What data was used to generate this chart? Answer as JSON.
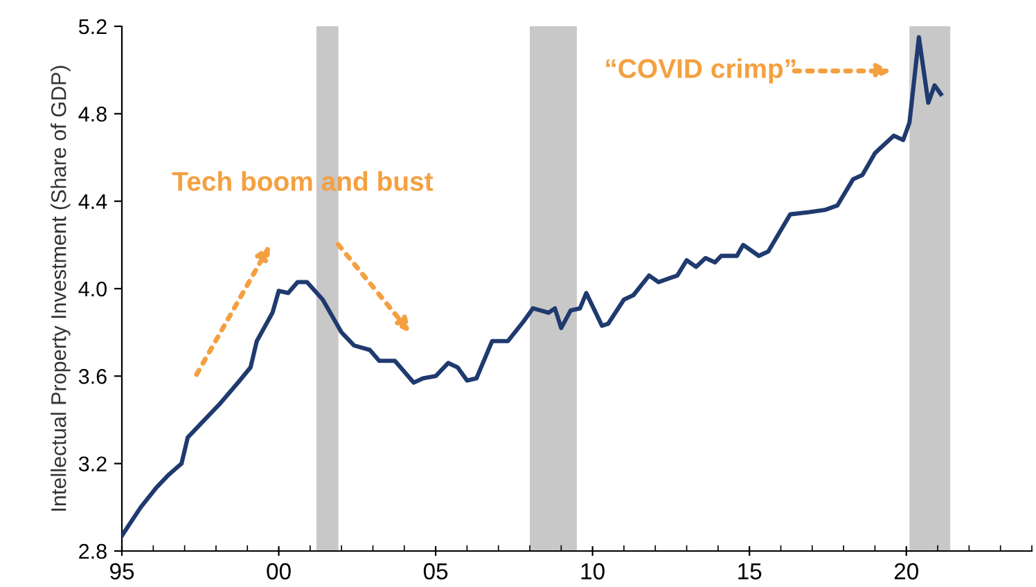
{
  "chart_data": {
    "type": "line",
    "ylabel": "Intellectual Property Investment (Share of GDP)",
    "x": [
      1995.0,
      1995.6,
      1996.1,
      1996.5,
      1996.9,
      1997.1,
      1997.5,
      1998.1,
      1998.7,
      1999.1,
      1999.3,
      1999.8,
      2000.0,
      2000.3,
      2000.6,
      2000.9,
      2001.4,
      2002.0,
      2002.4,
      2002.9,
      2003.2,
      2003.7,
      2004.3,
      2004.6,
      2005.0,
      2005.4,
      2005.7,
      2006.0,
      2006.3,
      2006.8,
      2007.3,
      2007.8,
      2008.1,
      2008.6,
      2008.8,
      2009.0,
      2009.3,
      2009.6,
      2009.8,
      2010.3,
      2010.5,
      2011.0,
      2011.3,
      2011.8,
      2012.1,
      2012.5,
      2012.7,
      2013.0,
      2013.3,
      2013.6,
      2013.9,
      2014.1,
      2014.6,
      2014.8,
      2015.3,
      2015.6,
      2016.3,
      2016.9,
      2017.4,
      2017.8,
      2018.3,
      2018.6,
      2019.0,
      2019.6,
      2019.9,
      2020.1,
      2020.4,
      2020.7,
      2020.9,
      2021.1
    ],
    "series": [
      {
        "color": "#1f3a6e",
        "values": [
          2.87,
          3.0,
          3.09,
          3.15,
          3.2,
          3.32,
          3.38,
          3.47,
          3.57,
          3.64,
          3.76,
          3.89,
          3.99,
          3.98,
          4.03,
          4.03,
          3.95,
          3.8,
          3.74,
          3.72,
          3.67,
          3.67,
          3.57,
          3.59,
          3.6,
          3.66,
          3.64,
          3.58,
          3.59,
          3.76,
          3.76,
          3.85,
          3.91,
          3.89,
          3.91,
          3.82,
          3.9,
          3.91,
          3.98,
          3.83,
          3.84,
          3.95,
          3.97,
          4.06,
          4.03,
          4.05,
          4.06,
          4.13,
          4.1,
          4.14,
          4.12,
          4.15,
          4.15,
          4.2,
          4.15,
          4.17,
          4.34,
          4.35,
          4.36,
          4.38,
          4.5,
          4.52,
          4.62,
          4.7,
          4.68,
          4.76,
          5.15,
          4.85,
          4.93,
          4.89
        ]
      }
    ],
    "bands": [
      {
        "axis": "x",
        "from": 2001.2,
        "to": 2001.9,
        "color": "#c8c8c8"
      },
      {
        "axis": "x",
        "from": 2008.0,
        "to": 2009.5,
        "color": "#c8c8c8"
      },
      {
        "axis": "x",
        "from": 2020.1,
        "to": 2021.4,
        "color": "#c8c8c8"
      }
    ],
    "annotations": [
      "Tech boom and bust",
      "“COVID crimp”"
    ],
    "xlim": [
      1995,
      2024
    ],
    "xticks": [
      {
        "value": 1995,
        "label": "95"
      },
      {
        "value": 2000,
        "label": "00"
      },
      {
        "value": 2005,
        "label": "05"
      },
      {
        "value": 2010,
        "label": "10"
      },
      {
        "value": 2015,
        "label": "15"
      },
      {
        "value": 2020,
        "label": "20"
      }
    ],
    "ylim": [
      2.8,
      5.2
    ],
    "yticks": [
      2.8,
      3.2,
      3.6,
      {
        "value": 4,
        "label": "4.0"
      },
      4.4,
      4.8,
      5.2
    ],
    "grid": false,
    "legend": false,
    "marker": "none",
    "line_style": "solid"
  }
}
